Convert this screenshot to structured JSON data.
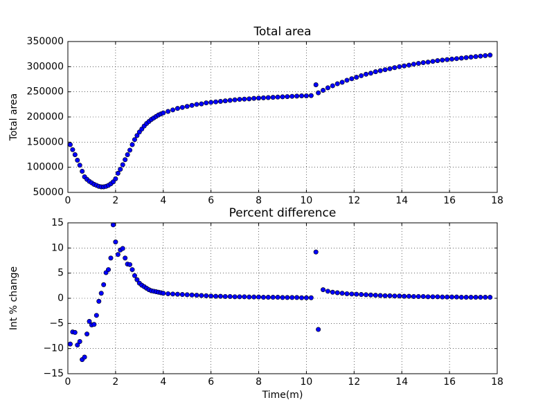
{
  "chart_data": [
    {
      "type": "scatter",
      "title": "Total area",
      "y_label": "Total area",
      "color": "#0000ff",
      "grid": true,
      "xlim": [
        0,
        18
      ],
      "xticks": [
        0,
        2,
        4,
        6,
        8,
        10,
        12,
        14,
        16,
        18
      ],
      "ylim": [
        50000,
        350000
      ],
      "yticks": [
        50000,
        100000,
        150000,
        200000,
        250000,
        300000,
        350000
      ],
      "x": [
        0.1,
        0.2,
        0.3,
        0.4,
        0.5,
        0.6,
        0.7,
        0.8,
        0.9,
        1.0,
        1.1,
        1.2,
        1.3,
        1.4,
        1.5,
        1.6,
        1.7,
        1.8,
        1.9,
        2.0,
        2.1,
        2.2,
        2.3,
        2.4,
        2.5,
        2.6,
        2.7,
        2.8,
        2.9,
        3.0,
        3.1,
        3.2,
        3.3,
        3.4,
        3.5,
        3.6,
        3.7,
        3.8,
        3.9,
        4.0,
        4.2,
        4.4,
        4.6,
        4.8,
        5.0,
        5.2,
        5.4,
        5.6,
        5.8,
        6.0,
        6.2,
        6.4,
        6.6,
        6.8,
        7.0,
        7.2,
        7.4,
        7.6,
        7.8,
        8.0,
        8.2,
        8.4,
        8.6,
        8.8,
        9.0,
        9.2,
        9.4,
        9.6,
        9.8,
        10.0,
        10.2,
        10.4,
        10.5,
        10.7,
        10.9,
        11.1,
        11.3,
        11.5,
        11.7,
        11.9,
        12.1,
        12.3,
        12.5,
        12.7,
        12.9,
        13.1,
        13.3,
        13.5,
        13.7,
        13.9,
        14.1,
        14.3,
        14.5,
        14.7,
        14.9,
        15.1,
        15.3,
        15.5,
        15.7,
        15.9,
        16.1,
        16.3,
        16.5,
        16.7,
        16.9,
        17.1,
        17.3,
        17.5,
        17.7
      ],
      "values": [
        145000,
        135000,
        125000,
        114000,
        104000,
        92000,
        81000,
        76000,
        72000,
        69000,
        66000,
        64000,
        62000,
        61000,
        61000,
        62000,
        64000,
        67000,
        71000,
        77000,
        88000,
        96000,
        105000,
        115000,
        125000,
        134000,
        145000,
        155000,
        163000,
        170000,
        176000,
        182000,
        187000,
        191000,
        195000,
        198000,
        201000,
        204000,
        206000,
        208000,
        211000,
        214000,
        217000,
        219000,
        221000,
        223000,
        225000,
        226000,
        228000,
        229000,
        230000,
        231000,
        232000,
        233000,
        234000,
        235000,
        235500,
        236000,
        237000,
        237500,
        238000,
        238500,
        239000,
        239500,
        240000,
        240500,
        241000,
        241500,
        242000,
        242000,
        242500,
        264000,
        248000,
        253000,
        258000,
        262000,
        266000,
        269000,
        273000,
        276000,
        279000,
        282000,
        285000,
        287000,
        290000,
        292000,
        294000,
        296000,
        298000,
        300000,
        301500,
        303000,
        305000,
        306500,
        308000,
        309000,
        310500,
        312000,
        313000,
        314000,
        315000,
        316000,
        317000,
        318000,
        319000,
        320000,
        321000,
        322000,
        323000
      ]
    },
    {
      "type": "scatter",
      "title": "Percent difference",
      "y_label": "Int % change",
      "x_label": "Time(m)",
      "color": "#0000ff",
      "grid": true,
      "xlim": [
        0,
        18
      ],
      "xticks": [
        0,
        2,
        4,
        6,
        8,
        10,
        12,
        14,
        16,
        18
      ],
      "ylim": [
        -15,
        15
      ],
      "yticks": [
        {
          "value": -15,
          "label": "−15"
        },
        {
          "value": -10,
          "label": "−10"
        },
        {
          "value": -5,
          "label": "−5"
        },
        0,
        5,
        10,
        15
      ],
      "x": [
        0.1,
        0.2,
        0.3,
        0.4,
        0.5,
        0.6,
        0.7,
        0.8,
        0.9,
        1.0,
        1.1,
        1.2,
        1.3,
        1.4,
        1.5,
        1.6,
        1.7,
        1.8,
        1.9,
        2.0,
        2.1,
        2.2,
        2.3,
        2.4,
        2.5,
        2.6,
        2.7,
        2.8,
        2.9,
        3.0,
        3.1,
        3.2,
        3.3,
        3.4,
        3.5,
        3.6,
        3.7,
        3.8,
        3.9,
        4.0,
        4.2,
        4.4,
        4.6,
        4.8,
        5.0,
        5.2,
        5.4,
        5.6,
        5.8,
        6.0,
        6.2,
        6.4,
        6.6,
        6.8,
        7.0,
        7.2,
        7.4,
        7.6,
        7.8,
        8.0,
        8.2,
        8.4,
        8.6,
        8.8,
        9.0,
        9.2,
        9.4,
        9.6,
        9.8,
        10.0,
        10.2,
        10.4,
        10.5,
        10.7,
        10.9,
        11.1,
        11.3,
        11.5,
        11.7,
        11.9,
        12.1,
        12.3,
        12.5,
        12.7,
        12.9,
        13.1,
        13.3,
        13.5,
        13.7,
        13.9,
        14.1,
        14.3,
        14.5,
        14.7,
        14.9,
        15.1,
        15.3,
        15.5,
        15.7,
        15.9,
        16.1,
        16.3,
        16.5,
        16.7,
        16.9,
        17.1,
        17.3,
        17.5,
        17.7
      ],
      "values": [
        -9.1,
        -6.7,
        -6.8,
        -9.3,
        -8.6,
        -12.2,
        -11.7,
        -7.1,
        -4.6,
        -5.3,
        -5.2,
        -3.4,
        -0.6,
        1.0,
        2.7,
        5.1,
        5.7,
        8.0,
        14.6,
        11.2,
        8.7,
        9.6,
        9.9,
        8.0,
        6.8,
        6.7,
        5.7,
        4.5,
        3.7,
        3.0,
        2.6,
        2.3,
        2.0,
        1.7,
        1.5,
        1.4,
        1.3,
        1.2,
        1.1,
        1.0,
        0.9,
        0.85,
        0.8,
        0.75,
        0.7,
        0.65,
        0.6,
        0.55,
        0.5,
        0.45,
        0.4,
        0.4,
        0.35,
        0.35,
        0.3,
        0.3,
        0.3,
        0.25,
        0.25,
        0.25,
        0.2,
        0.2,
        0.2,
        0.2,
        0.15,
        0.15,
        0.15,
        0.15,
        0.1,
        0.1,
        0.1,
        9.2,
        -6.2,
        1.7,
        1.4,
        1.2,
        1.1,
        1.0,
        0.9,
        0.85,
        0.8,
        0.75,
        0.7,
        0.65,
        0.6,
        0.55,
        0.5,
        0.5,
        0.45,
        0.45,
        0.4,
        0.4,
        0.35,
        0.35,
        0.35,
        0.3,
        0.3,
        0.3,
        0.25,
        0.25,
        0.25,
        0.25,
        0.2,
        0.2,
        0.2,
        0.2,
        0.2,
        0.2,
        0.2
      ]
    }
  ]
}
